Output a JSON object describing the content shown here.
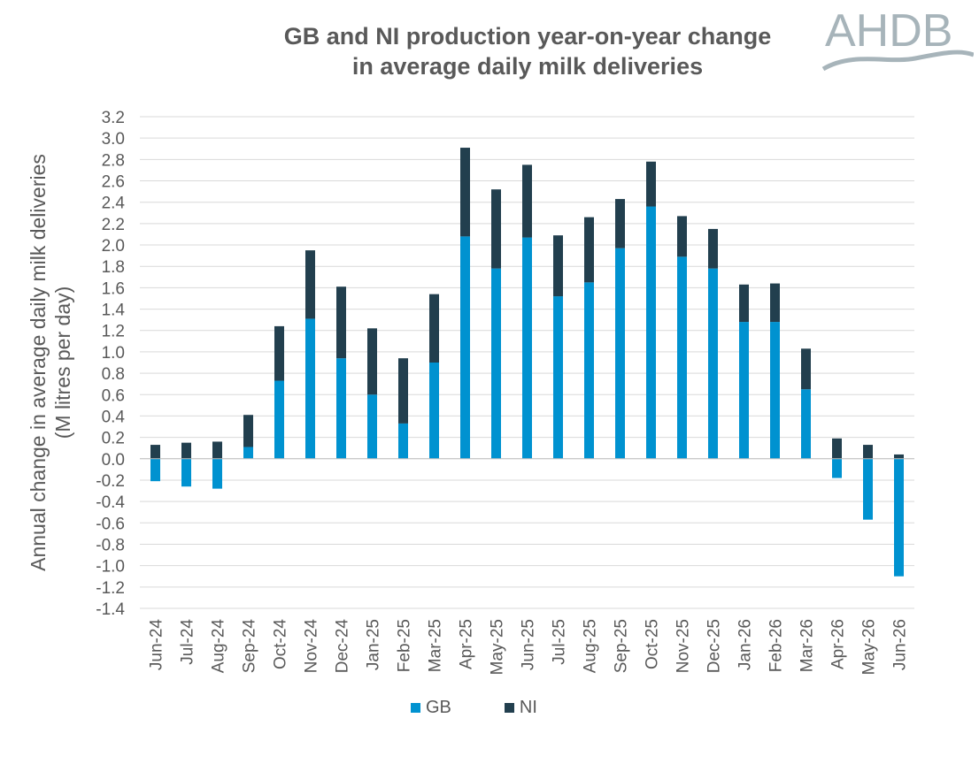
{
  "logo_text": "AHDB",
  "colors": {
    "gb": "#0092d0",
    "ni": "#223f4e",
    "grid": "#d9d9d9",
    "text": "#595959",
    "logo": "#a7b4ba"
  },
  "chart_data": {
    "type": "bar",
    "stacked": true,
    "title": [
      "GB and NI production year-on-year change",
      "in average daily milk deliveries"
    ],
    "ylabel": [
      "Annual change in average daily milk deliveries",
      "(M litres per day)"
    ],
    "xlabel": "",
    "ylim": [
      -1.4,
      3.2
    ],
    "ytick_step": 0.2,
    "grid": true,
    "legend": "bottom",
    "categories": [
      "Jun-24",
      "Jul-24",
      "Aug-24",
      "Sep-24",
      "Oct-24",
      "Nov-24",
      "Dec-24",
      "Jan-25",
      "Feb-25",
      "Mar-25",
      "Apr-25",
      "May-25",
      "Jun-25",
      "Jul-25",
      "Aug-25",
      "Sep-25",
      "Oct-25",
      "Nov-25",
      "Dec-25",
      "Jan-26",
      "Feb-26",
      "Mar-26",
      "Apr-26",
      "May-26",
      "Jun-26"
    ],
    "series": [
      {
        "name": "GB",
        "values": [
          -0.21,
          -0.26,
          -0.28,
          0.11,
          0.73,
          1.31,
          0.94,
          0.6,
          0.33,
          0.9,
          2.08,
          1.78,
          2.07,
          1.52,
          1.65,
          1.97,
          2.36,
          1.89,
          1.78,
          1.28,
          1.28,
          0.65,
          -0.18,
          -0.57,
          -1.1
        ]
      },
      {
        "name": "NI",
        "values": [
          0.13,
          0.15,
          0.16,
          0.3,
          0.51,
          0.64,
          0.67,
          0.62,
          0.61,
          0.64,
          0.83,
          0.74,
          0.68,
          0.57,
          0.61,
          0.46,
          0.42,
          0.38,
          0.37,
          0.35,
          0.36,
          0.38,
          0.19,
          0.13,
          0.04
        ]
      }
    ]
  }
}
